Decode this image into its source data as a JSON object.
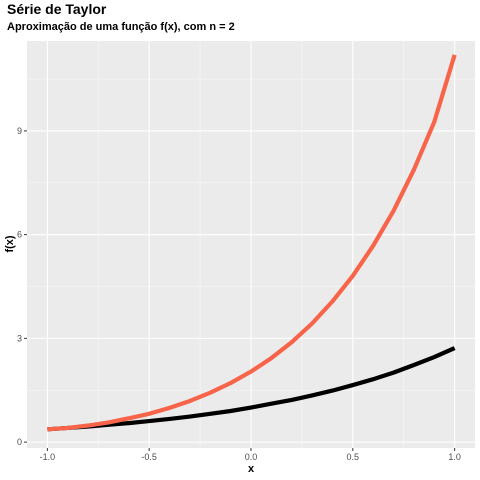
{
  "chart_data": {
    "type": "line",
    "title": "Série de Taylor",
    "subtitle": "Aproximação de uma função f(x), com n = 2",
    "xlabel": "x",
    "ylabel": "f(x)",
    "xlim": [
      -1.1,
      1.1
    ],
    "ylim": [
      -0.17,
      11.6
    ],
    "x_ticks": [
      -1.0,
      -0.5,
      0.0,
      0.5,
      1.0
    ],
    "x_tick_labels": [
      "-1.0",
      "-0.5",
      "0.0",
      "0.5",
      "1.0"
    ],
    "y_ticks": [
      0,
      3,
      6,
      9
    ],
    "y_tick_labels": [
      "0",
      "3",
      "6",
      "9"
    ],
    "grid": true,
    "legend": "none",
    "x": [
      -1.0,
      -0.9,
      -0.8,
      -0.7,
      -0.6,
      -0.5,
      -0.4,
      -0.3,
      -0.2,
      -0.1,
      0.0,
      0.1,
      0.2,
      0.3,
      0.4,
      0.5,
      0.6,
      0.7,
      0.8,
      0.9,
      1.0
    ],
    "series": [
      {
        "color": "#000000",
        "values": [
          0.37,
          0.41,
          0.45,
          0.5,
          0.55,
          0.61,
          0.67,
          0.74,
          0.82,
          0.9,
          1.0,
          1.11,
          1.22,
          1.35,
          1.49,
          1.65,
          1.82,
          2.01,
          2.23,
          2.46,
          2.72
        ]
      },
      {
        "color": "#f8644a",
        "values": [
          0.37,
          0.41,
          0.48,
          0.57,
          0.69,
          0.82,
          0.99,
          1.19,
          1.43,
          1.71,
          2.04,
          2.43,
          2.89,
          3.43,
          4.07,
          4.81,
          5.68,
          6.69,
          7.88,
          9.26,
          11.2
        ]
      }
    ]
  }
}
